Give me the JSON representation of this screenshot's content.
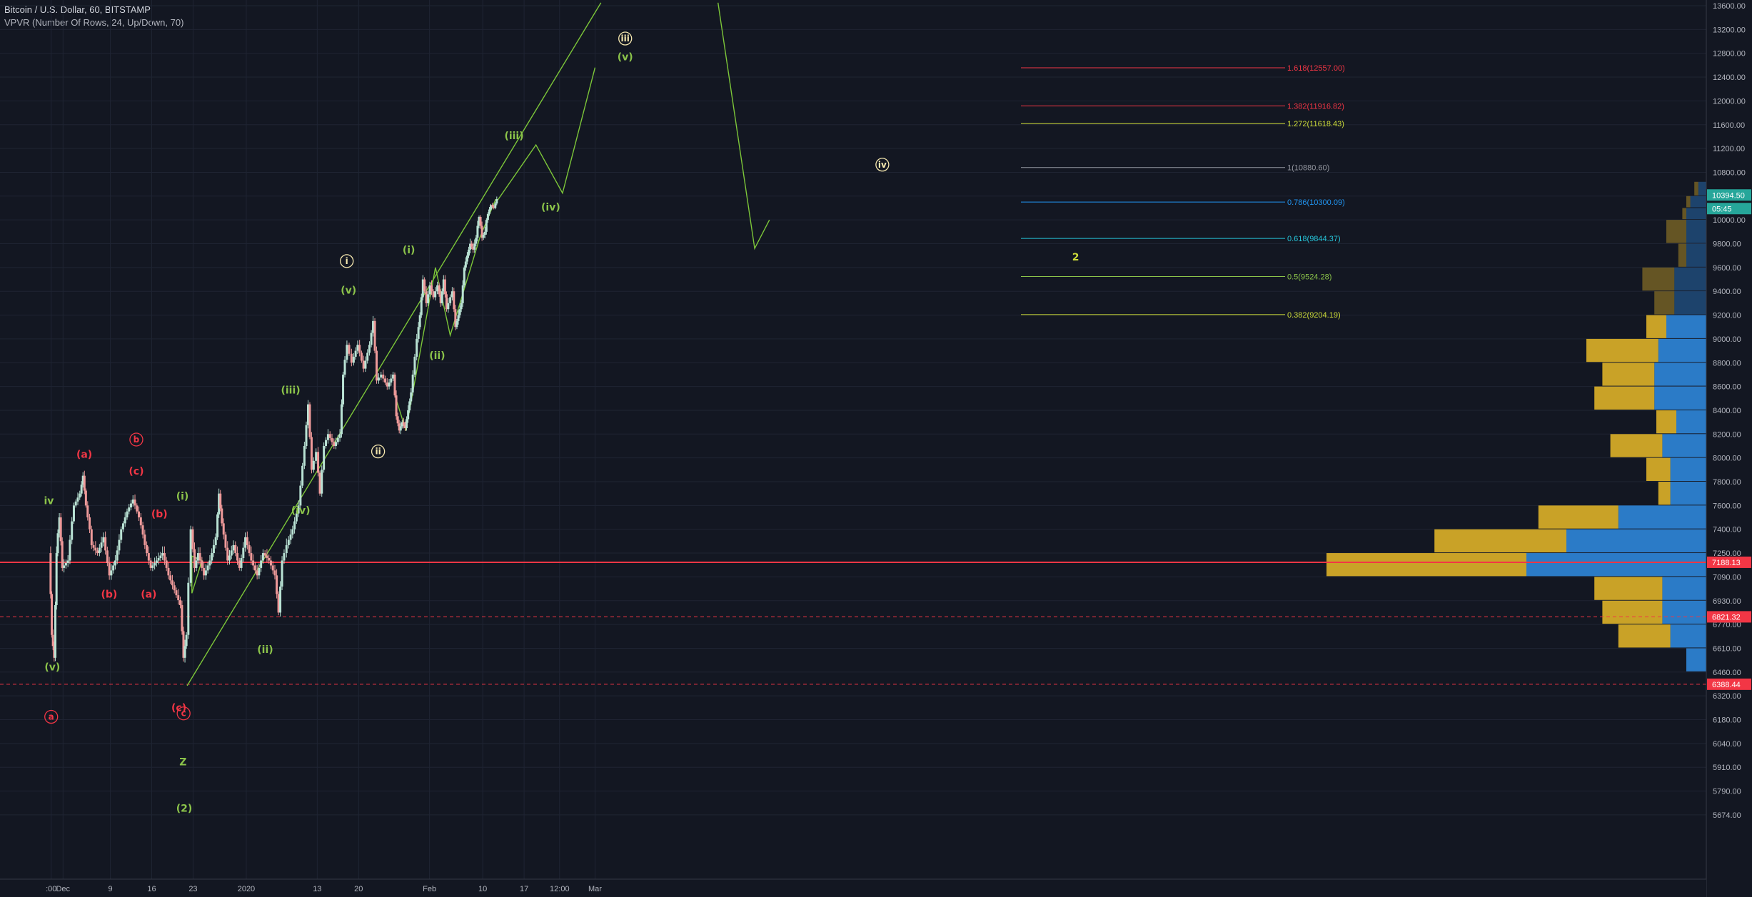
{
  "header": {
    "symbol": "Bitcoin / U.S. Dollar, 60, BITSTAMP",
    "indicator": "VPVR (Number Of Rows, 24, Up/Down, 70)"
  },
  "chart_data": {
    "type": "candlestick",
    "price_axis": {
      "range": [
        5620,
        13700
      ],
      "ticks": [
        13600,
        13200,
        12800,
        12400,
        12000,
        11600,
        11200,
        10800,
        10400,
        10000,
        9800,
        9600,
        9400,
        9200,
        9000,
        8800,
        8600,
        8400,
        8200,
        8000,
        7800,
        7600,
        7400,
        7250,
        7090,
        6930,
        6770,
        6610,
        6460,
        6320,
        6180,
        6040,
        5910,
        5790,
        5674
      ]
    },
    "time_axis": {
      "ticks": [
        {
          "label": ":00",
          "day": -1
        },
        {
          "label": "Dec",
          "day": 1
        },
        {
          "label": "9",
          "day": 9
        },
        {
          "label": "16",
          "day": 16
        },
        {
          "label": "23",
          "day": 23
        },
        {
          "label": "2020",
          "day": 32
        },
        {
          "label": "13",
          "day": 44
        },
        {
          "label": "20",
          "day": 51
        },
        {
          "label": "Feb",
          "day": 63
        },
        {
          "label": "10",
          "day": 72
        },
        {
          "label": "17",
          "day": 79
        },
        {
          "label": "12:00",
          "day": 85
        },
        {
          "label": "Mar",
          "day": 91
        }
      ]
    },
    "price_path": [
      [
        -1.2,
        7250
      ],
      [
        -0.8,
        6700
      ],
      [
        -0.4,
        6550
      ],
      [
        0,
        7250
      ],
      [
        0.5,
        7500
      ],
      [
        1,
        7150
      ],
      [
        2,
        7200
      ],
      [
        3,
        7600
      ],
      [
        4,
        7700
      ],
      [
        4.5,
        7850
      ],
      [
        5,
        7600
      ],
      [
        6,
        7300
      ],
      [
        7,
        7250
      ],
      [
        8,
        7350
      ],
      [
        9,
        7100
      ],
      [
        10,
        7200
      ],
      [
        11,
        7400
      ],
      [
        12,
        7550
      ],
      [
        13,
        7650
      ],
      [
        14,
        7500
      ],
      [
        15,
        7300
      ],
      [
        16,
        7150
      ],
      [
        17,
        7200
      ],
      [
        18,
        7250
      ],
      [
        19,
        7100
      ],
      [
        20,
        7000
      ],
      [
        21,
        6900
      ],
      [
        21.5,
        6550
      ],
      [
        22,
        6700
      ],
      [
        22.8,
        7400
      ],
      [
        23.4,
        7150
      ],
      [
        24,
        7250
      ],
      [
        25,
        7100
      ],
      [
        26,
        7200
      ],
      [
        27,
        7350
      ],
      [
        27.5,
        7700
      ],
      [
        28,
        7450
      ],
      [
        29,
        7200
      ],
      [
        30,
        7300
      ],
      [
        31,
        7150
      ],
      [
        32,
        7350
      ],
      [
        33,
        7200
      ],
      [
        34,
        7100
      ],
      [
        35,
        7250
      ],
      [
        36,
        7200
      ],
      [
        37,
        7100
      ],
      [
        37.6,
        6850
      ],
      [
        38.2,
        7200
      ],
      [
        39,
        7300
      ],
      [
        40,
        7400
      ],
      [
        41,
        7600
      ],
      [
        42,
        8100
      ],
      [
        42.6,
        8450
      ],
      [
        43.2,
        7900
      ],
      [
        44,
        8050
      ],
      [
        44.6,
        7700
      ],
      [
        45.3,
        8100
      ],
      [
        46,
        8200
      ],
      [
        47,
        8100
      ],
      [
        48,
        8200
      ],
      [
        48.5,
        8700
      ],
      [
        49.2,
        8950
      ],
      [
        50,
        8800
      ],
      [
        51,
        8950
      ],
      [
        52,
        8750
      ],
      [
        53,
        8950
      ],
      [
        53.6,
        9150
      ],
      [
        54.2,
        8650
      ],
      [
        55,
        8700
      ],
      [
        56,
        8600
      ],
      [
        57,
        8700
      ],
      [
        57.5,
        8350
      ],
      [
        58,
        8230
      ],
      [
        58.5,
        8300
      ],
      [
        59,
        8250
      ],
      [
        59.5,
        8400
      ],
      [
        60,
        8550
      ],
      [
        61,
        9000
      ],
      [
        61.5,
        9200
      ],
      [
        62,
        9500
      ],
      [
        62.6,
        9300
      ],
      [
        63.2,
        9450
      ],
      [
        63.8,
        9350
      ],
      [
        64.5,
        9450
      ],
      [
        65,
        9300
      ],
      [
        65.5,
        9500
      ],
      [
        66,
        9250
      ],
      [
        67,
        9400
      ],
      [
        67.5,
        9100
      ],
      [
        68,
        9200
      ],
      [
        68.5,
        9300
      ],
      [
        69,
        9600
      ],
      [
        69.5,
        9700
      ],
      [
        70,
        9800
      ],
      [
        70.5,
        9750
      ],
      [
        71,
        9850
      ],
      [
        71.5,
        10050
      ],
      [
        72,
        9850
      ],
      [
        72.5,
        9900
      ],
      [
        73,
        10100
      ],
      [
        73.5,
        10250
      ],
      [
        74,
        10200
      ],
      [
        74.5,
        10350
      ]
    ],
    "vpvr_rows": [
      {
        "price": 6460,
        "up": 0,
        "down": 10
      },
      {
        "price": 6610,
        "up": 26,
        "down": 18
      },
      {
        "price": 6770,
        "up": 30,
        "down": 22
      },
      {
        "price": 6930,
        "up": 34,
        "down": 22
      },
      {
        "price": 7090,
        "up": 100,
        "down": 90
      },
      {
        "price": 7250,
        "up": 66,
        "down": 70
      },
      {
        "price": 7400,
        "up": 40,
        "down": 44
      },
      {
        "price": 7600,
        "up": 6,
        "down": 18
      },
      {
        "price": 7800,
        "up": 12,
        "down": 18
      },
      {
        "price": 8000,
        "up": 26,
        "down": 22
      },
      {
        "price": 8200,
        "up": 10,
        "down": 15
      },
      {
        "price": 8400,
        "up": 30,
        "down": 26
      },
      {
        "price": 8600,
        "up": 26,
        "down": 26
      },
      {
        "price": 8800,
        "up": 36,
        "down": 24
      },
      {
        "price": 9000,
        "up": 10,
        "down": 20
      },
      {
        "price": 9200,
        "up": 10,
        "down": 16
      },
      {
        "price": 9400,
        "up": 16,
        "down": 16
      },
      {
        "price": 9600,
        "up": 4,
        "down": 10
      },
      {
        "price": 9800,
        "up": 10,
        "down": 10
      },
      {
        "price": 10000,
        "up": 2,
        "down": 10
      },
      {
        "price": 10200,
        "up": 2,
        "down": 8
      },
      {
        "price": 10400,
        "up": 2,
        "down": 4
      }
    ],
    "fib_levels": [
      {
        "ratio": "1.618",
        "price": 12557.0,
        "label": "1.618(12557.00)",
        "color": "#f23645"
      },
      {
        "ratio": "1.382",
        "price": 11916.82,
        "label": "1.382(11916.82)",
        "color": "#f23645"
      },
      {
        "ratio": "1.272",
        "price": 11618.43,
        "label": "1.272(11618.43)",
        "color": "#cddc39"
      },
      {
        "ratio": "1",
        "price": 10880.6,
        "label": "1(10880.60)",
        "color": "#9598a1"
      },
      {
        "ratio": "0.786",
        "price": 10300.09,
        "label": "0.786(10300.09)",
        "color": "#2196f3"
      },
      {
        "ratio": "0.618",
        "price": 9844.37,
        "label": "0.618(9844.37)",
        "color": "#26c6da"
      },
      {
        "ratio": "0.5",
        "price": 9524.28,
        "label": "0.5(9524.28)",
        "color": "#8bc34a"
      },
      {
        "ratio": "0.382",
        "price": 9204.19,
        "label": "0.382(9204.19)",
        "color": "#cddc39"
      }
    ],
    "horizontal_lines": [
      {
        "price": 7188.13,
        "label": "7188.13",
        "style": "solid",
        "color": "#f23645"
      },
      {
        "price": 6821.32,
        "label": "6821.32",
        "style": "dashed",
        "color": "#f23645"
      },
      {
        "price": 6388.44,
        "label": "6388.44",
        "style": "dashed",
        "color": "#f23645"
      }
    ],
    "last_price": {
      "price": 10394.5,
      "label": "10394.50",
      "countdown": "05:45",
      "color": "#26a69a"
    },
    "projection_path": [
      [
        74.2,
        10350
      ],
      [
        71.5,
        9850
      ],
      [
        66.5,
        9030
      ],
      [
        64,
        9600
      ],
      [
        59,
        8230
      ],
      [
        57,
        8550
      ]
    ],
    "forecast_path": [
      [
        74.3,
        10300
      ],
      [
        81,
        11260
      ],
      [
        85.5,
        10450
      ],
      [
        91,
        12560
      ]
    ],
    "trendline": [
      [
        22,
        6380
      ],
      [
        92,
        13650
      ]
    ],
    "wave2_path": [
      [
        111.8,
        13650
      ],
      [
        118,
        9760
      ],
      [
        120.5,
        10000
      ]
    ],
    "small_triangle": [
      [
        22.8,
        6980
      ],
      [
        24.5,
        7200
      ],
      [
        22.8,
        7230
      ]
    ],
    "wave_labels": [
      {
        "text": "iv",
        "day": -1.4,
        "price": 7610,
        "color": "#8bc34a",
        "circle": false
      },
      {
        "text": "(v)",
        "day": -0.8,
        "price": 6470,
        "color": "#8bc34a",
        "circle": false
      },
      {
        "text": "a",
        "day": -1,
        "price": 6180,
        "color": "#f23645",
        "circle": true
      },
      {
        "text": "(a)",
        "day": 4.6,
        "price": 8000,
        "color": "#f23645",
        "circle": false
      },
      {
        "text": "b",
        "day": 13.4,
        "price": 8130,
        "color": "#f23645",
        "circle": true
      },
      {
        "text": "(c)",
        "day": 13.4,
        "price": 7860,
        "color": "#f23645",
        "circle": false
      },
      {
        "text": "(b)",
        "day": 8.8,
        "price": 6950,
        "color": "#f23645",
        "circle": false
      },
      {
        "text": "(b)",
        "day": 17.3,
        "price": 7500,
        "color": "#f23645",
        "circle": false
      },
      {
        "text": "(a)",
        "day": 15.5,
        "price": 6950,
        "color": "#f23645",
        "circle": false
      },
      {
        "text": "(c)",
        "day": 20.6,
        "price": 6230,
        "color": "#f23645",
        "circle": false
      },
      {
        "text": "c",
        "day": 21.4,
        "price": 6200,
        "color": "#f23645",
        "circle": true
      },
      {
        "text": "(i)",
        "day": 21.2,
        "price": 7650,
        "color": "#8bc34a",
        "circle": false
      },
      {
        "text": "Z",
        "day": 21.3,
        "price": 5920,
        "color": "#8bc34a",
        "circle": false
      },
      {
        "text": "(2)",
        "day": 21.5,
        "price": 5690,
        "color": "#8bc34a",
        "circle": false
      },
      {
        "text": "(ii)",
        "day": 35.2,
        "price": 6580,
        "color": "#8bc34a",
        "circle": false
      },
      {
        "text": "(iii)",
        "day": 39.5,
        "price": 8540,
        "color": "#8bc34a",
        "circle": false
      },
      {
        "text": "(iv)",
        "day": 41.2,
        "price": 7530,
        "color": "#8bc34a",
        "circle": false
      },
      {
        "text": "i",
        "day": 49,
        "price": 9630,
        "color": "#f7e9b0",
        "circle": true
      },
      {
        "text": "(v)",
        "day": 49.3,
        "price": 9380,
        "color": "#8bc34a",
        "circle": false
      },
      {
        "text": "ii",
        "day": 54.3,
        "price": 8030,
        "color": "#f7e9b0",
        "circle": true
      },
      {
        "text": "(i)",
        "day": 59.5,
        "price": 9720,
        "color": "#8bc34a",
        "circle": false
      },
      {
        "text": "(ii)",
        "day": 64.3,
        "price": 8830,
        "color": "#8bc34a",
        "circle": false
      },
      {
        "text": "(iii)",
        "day": 77.3,
        "price": 11360,
        "color": "#8bc34a",
        "circle": false
      },
      {
        "text": "(iv)",
        "day": 83.5,
        "price": 10160,
        "color": "#8bc34a",
        "circle": false
      },
      {
        "text": "iii",
        "day": 96.1,
        "price": 13000,
        "color": "#f7e9b0",
        "circle": true
      },
      {
        "text": "(v)",
        "day": 96.1,
        "price": 12680,
        "color": "#8bc34a",
        "circle": false
      },
      {
        "text": "iv",
        "day": 139.6,
        "price": 10880,
        "color": "#f7e9b0",
        "circle": true
      },
      {
        "text": "2",
        "day": 172.3,
        "price": 9660,
        "color": "#cddc39",
        "circle": false
      }
    ]
  }
}
